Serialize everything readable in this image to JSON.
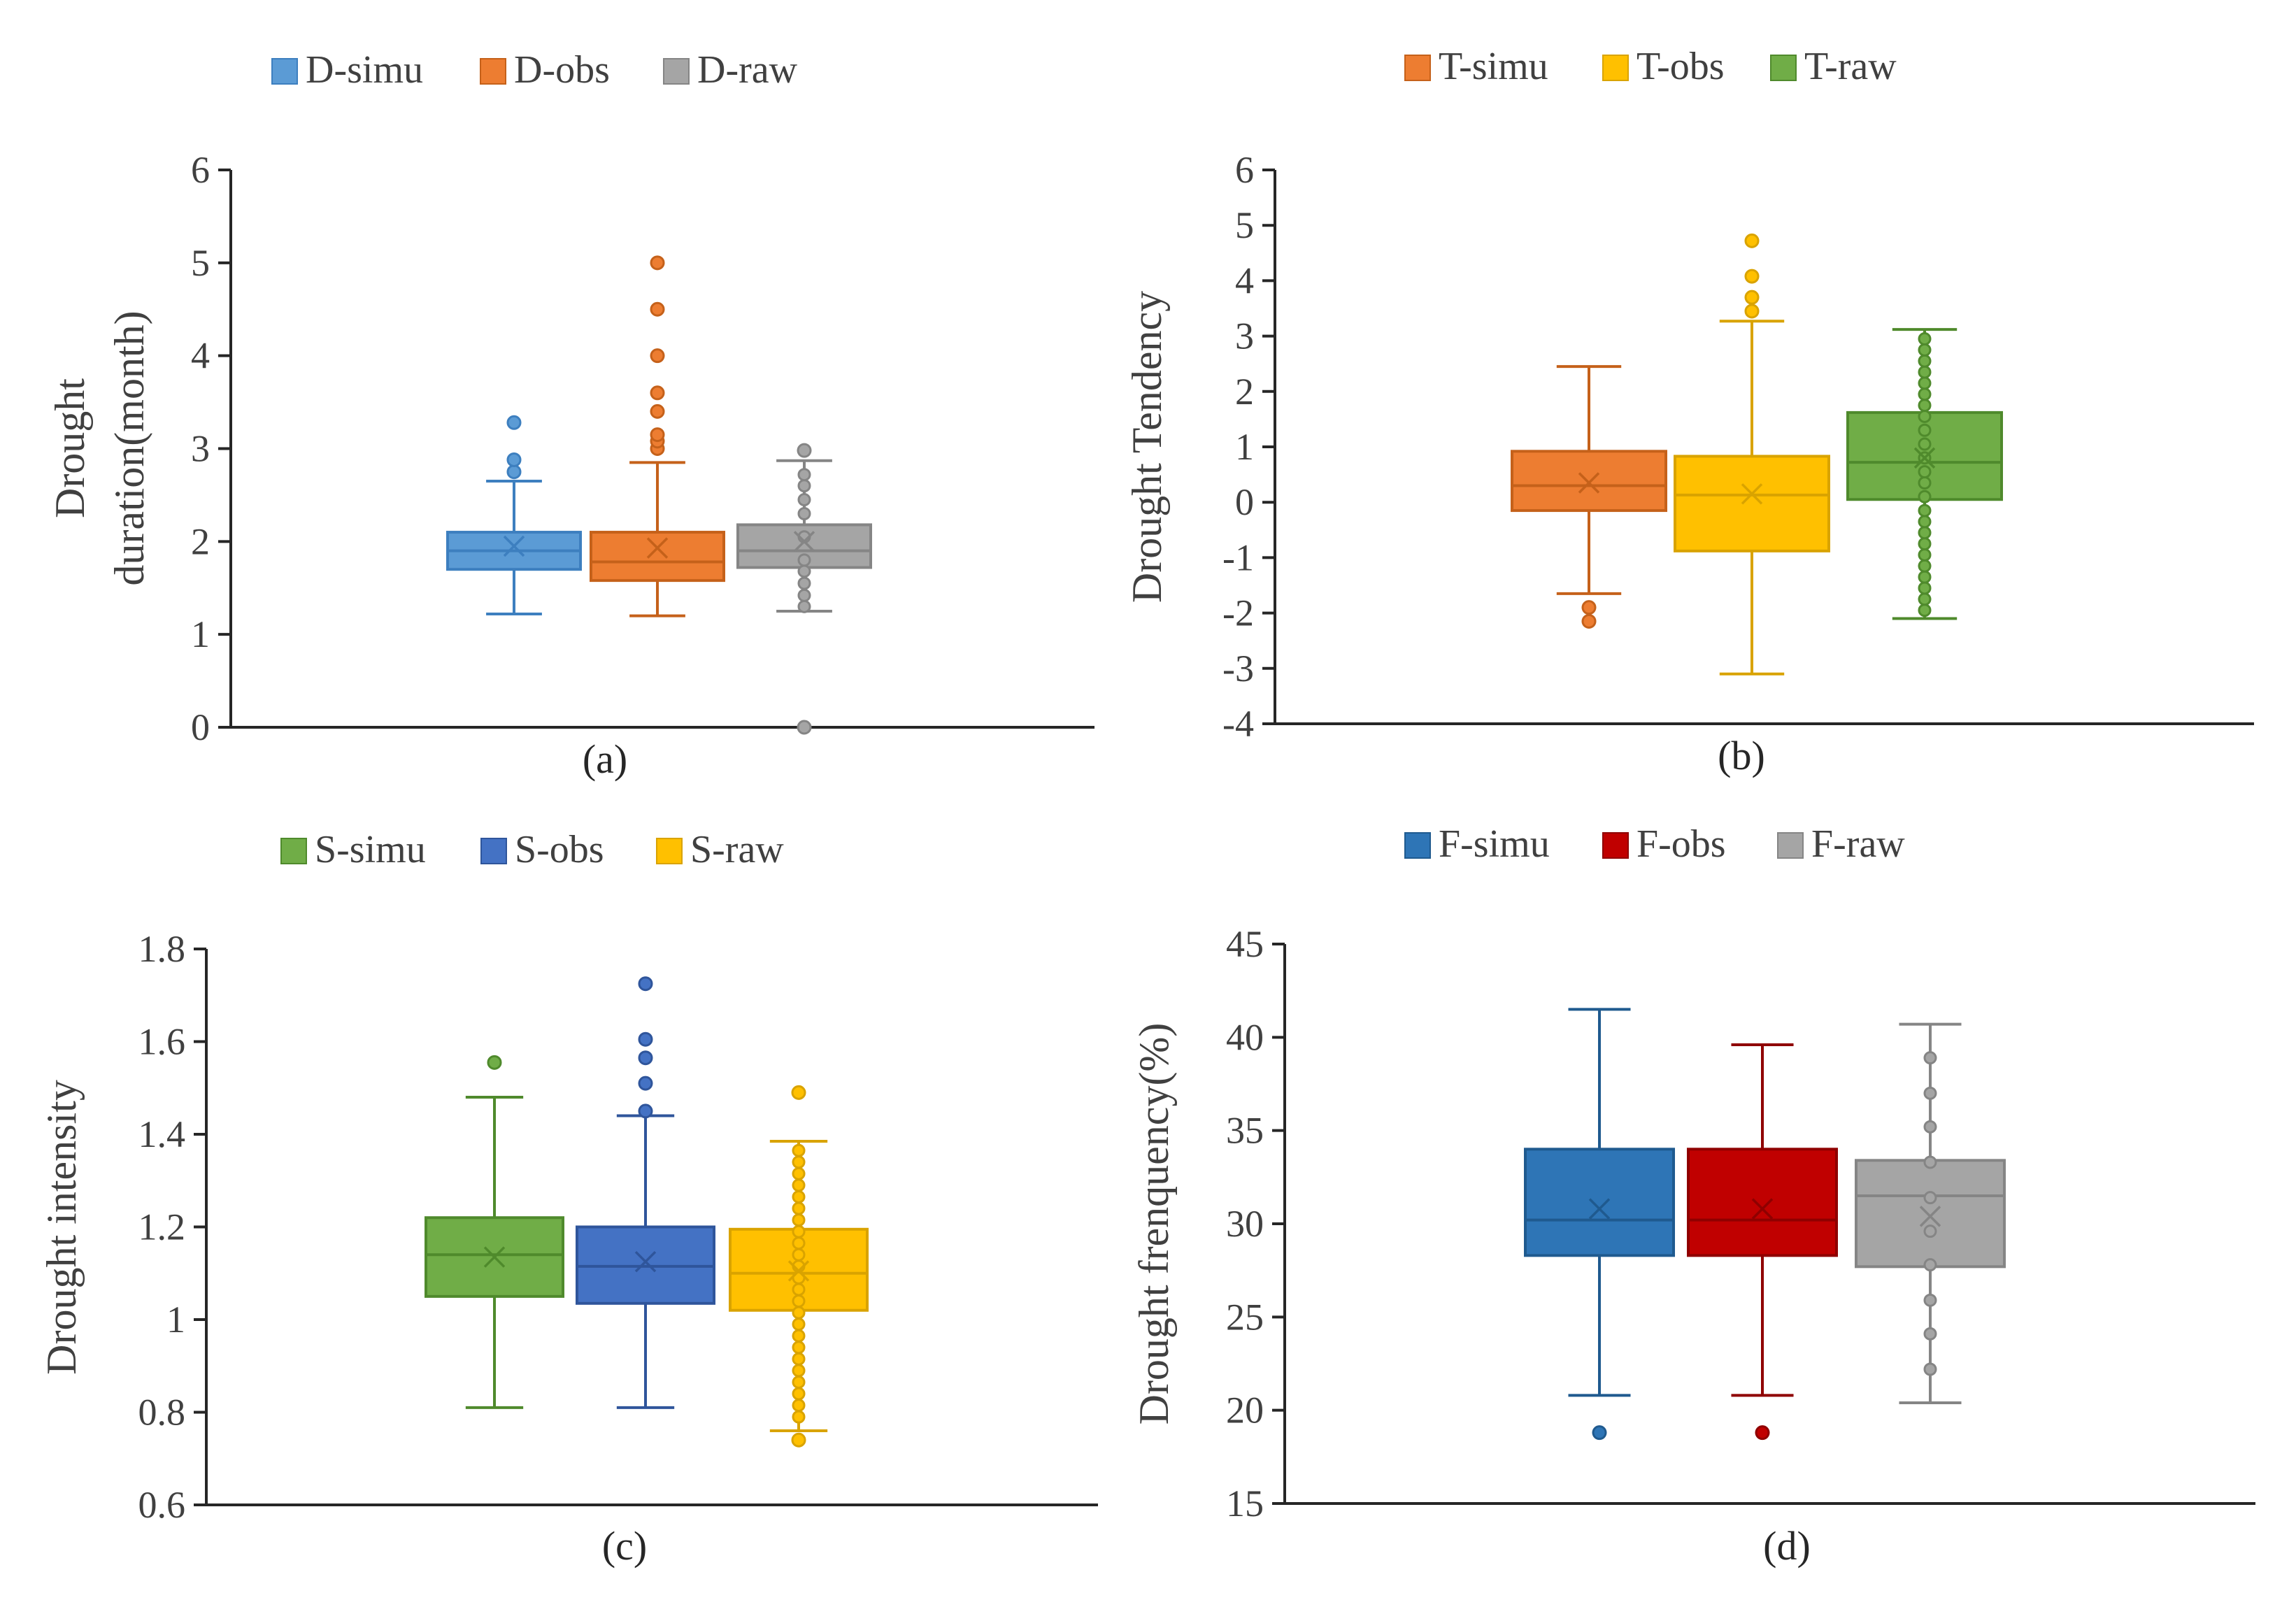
{
  "chart_data": [
    {
      "id": "a",
      "type": "box",
      "caption": "(a)",
      "ylabel": [
        "Drought",
        "duration(month)"
      ],
      "ylim": [
        0,
        6
      ],
      "ticks": [
        "0",
        "1",
        "2",
        "3",
        "4",
        "5",
        "6"
      ],
      "tick_values": [
        0,
        1,
        2,
        3,
        4,
        5,
        6
      ],
      "series": [
        {
          "name": "D-simu",
          "color": "#5B9BD5",
          "stroke": "#3d7fbf",
          "q1": 1.7,
          "median": 1.9,
          "q3": 2.1,
          "min": 1.22,
          "max": 2.65,
          "mean": 1.95,
          "outliers": [
            2.75,
            2.88,
            3.28
          ],
          "inner_points": []
        },
        {
          "name": "D-obs",
          "color": "#ED7D31",
          "stroke": "#c5611a",
          "q1": 1.58,
          "median": 1.78,
          "q3": 2.1,
          "min": 1.2,
          "max": 2.85,
          "mean": 1.93,
          "outliers": [
            3.0,
            3.08,
            3.15,
            3.4,
            3.6,
            4.0,
            4.5,
            5.0
          ],
          "inner_points": []
        },
        {
          "name": "D-raw",
          "color": "#A5A5A5",
          "stroke": "#858585",
          "q1": 1.72,
          "median": 1.9,
          "q3": 2.18,
          "min": 1.25,
          "max": 2.87,
          "mean": 2.0,
          "outliers": [
            0.0,
            2.98
          ],
          "inner_points": [
            1.3,
            1.42,
            1.55,
            1.68,
            1.8,
            2.05,
            2.3,
            2.45,
            2.6,
            2.72
          ]
        }
      ]
    },
    {
      "id": "b",
      "type": "box",
      "caption": "(b)",
      "ylabel": [
        "Drought Tendency"
      ],
      "ylim": [
        -4,
        6
      ],
      "ticks": [
        "-4",
        "-3",
        "-2",
        "-1",
        "0",
        "1",
        "2",
        "3",
        "4",
        "5",
        "6"
      ],
      "tick_values": [
        -4,
        -3,
        -2,
        -1,
        0,
        1,
        2,
        3,
        4,
        5,
        6
      ],
      "series": [
        {
          "name": "T-simu",
          "color": "#ED7D31",
          "stroke": "#c5611a",
          "q1": -0.15,
          "median": 0.3,
          "q3": 0.92,
          "min": -1.65,
          "max": 2.45,
          "mean": 0.35,
          "outliers": [
            -1.9,
            -2.15
          ],
          "inner_points": []
        },
        {
          "name": "T-obs",
          "color": "#FFC000",
          "stroke": "#d9a300",
          "q1": -0.88,
          "median": 0.13,
          "q3": 0.83,
          "min": -3.1,
          "max": 3.27,
          "mean": 0.15,
          "outliers": [
            3.45,
            3.7,
            4.08,
            4.72
          ],
          "inner_points": []
        },
        {
          "name": "T-raw",
          "color": "#70AD47",
          "stroke": "#4f8a2c",
          "q1": 0.05,
          "median": 0.72,
          "q3": 1.62,
          "min": -2.1,
          "max": 3.12,
          "mean": 0.8,
          "outliers": [],
          "inner_points": [
            -1.95,
            -1.75,
            -1.55,
            -1.35,
            -1.15,
            -0.95,
            -0.75,
            -0.55,
            -0.35,
            -0.15,
            0.1,
            0.35,
            0.55,
            0.8,
            1.05,
            1.3,
            1.55,
            1.75,
            1.95,
            2.15,
            2.35,
            2.55,
            2.75,
            2.95
          ]
        }
      ]
    },
    {
      "id": "c",
      "type": "box",
      "caption": "(c)",
      "ylabel": [
        "Drought intensity"
      ],
      "ylim": [
        0.6,
        1.8
      ],
      "ticks": [
        "0.6",
        "0.8",
        "1",
        "1.2",
        "1.4",
        "1.6",
        "1.8"
      ],
      "tick_values": [
        0.6,
        0.8,
        1.0,
        1.2,
        1.4,
        1.6,
        1.8
      ],
      "series": [
        {
          "name": "S-simu",
          "color": "#70AD47",
          "stroke": "#4f8a2c",
          "q1": 1.05,
          "median": 1.14,
          "q3": 1.22,
          "min": 0.81,
          "max": 1.48,
          "mean": 1.135,
          "outliers": [
            1.555
          ],
          "inner_points": []
        },
        {
          "name": "S-obs",
          "color": "#4472C4",
          "stroke": "#2f559b",
          "q1": 1.035,
          "median": 1.115,
          "q3": 1.2,
          "min": 0.81,
          "max": 1.44,
          "mean": 1.125,
          "outliers": [
            1.45,
            1.51,
            1.565,
            1.605,
            1.725
          ],
          "inner_points": []
        },
        {
          "name": "S-raw",
          "color": "#FFC000",
          "stroke": "#d9a300",
          "q1": 1.02,
          "median": 1.1,
          "q3": 1.195,
          "min": 0.76,
          "max": 1.385,
          "mean": 1.105,
          "outliers": [
            0.74,
            1.49
          ],
          "inner_points": [
            0.79,
            0.815,
            0.84,
            0.865,
            0.89,
            0.915,
            0.94,
            0.965,
            0.99,
            1.015,
            1.04,
            1.065,
            1.09,
            1.115,
            1.14,
            1.165,
            1.19,
            1.215,
            1.24,
            1.265,
            1.29,
            1.315,
            1.34,
            1.365
          ]
        }
      ]
    },
    {
      "id": "d",
      "type": "box",
      "caption": "(d)",
      "ylabel": [
        "Drought frenquency(%)"
      ],
      "ylim": [
        15,
        45
      ],
      "ticks": [
        "15",
        "20",
        "25",
        "30",
        "35",
        "40",
        "45"
      ],
      "tick_values": [
        15,
        20,
        25,
        30,
        35,
        40,
        45
      ],
      "series": [
        {
          "name": "F-simu",
          "color": "#2E75B6",
          "stroke": "#1f5a8f",
          "q1": 28.3,
          "median": 30.2,
          "q3": 34.0,
          "min": 20.8,
          "max": 41.5,
          "mean": 30.8,
          "outliers": [
            18.8
          ],
          "inner_points": []
        },
        {
          "name": "F-obs",
          "color": "#C00000",
          "stroke": "#8f0000",
          "q1": 28.3,
          "median": 30.2,
          "q3": 34.0,
          "min": 20.8,
          "max": 39.6,
          "mean": 30.8,
          "outliers": [
            18.8
          ],
          "inner_points": []
        },
        {
          "name": "F-raw",
          "color": "#A5A5A5",
          "stroke": "#858585",
          "q1": 27.7,
          "median": 31.5,
          "q3": 33.4,
          "min": 20.4,
          "max": 40.7,
          "mean": 30.4,
          "outliers": [],
          "inner_points": [
            22.2,
            24.1,
            25.9,
            27.8,
            29.6,
            31.4,
            33.3,
            35.2,
            37.0,
            38.9
          ]
        }
      ]
    }
  ]
}
